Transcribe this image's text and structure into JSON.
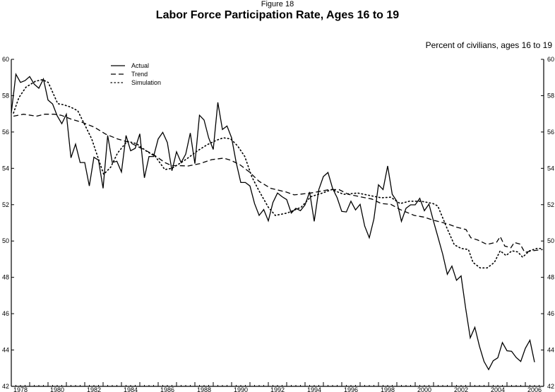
{
  "chart_data": {
    "type": "line",
    "supertitle": "Figure 18",
    "title": "Labor Force Participation Rate, Ages 16 to 19",
    "ylabel": "Percent of civilians, ages 16 to 19",
    "xlim": [
      1978,
      2007
    ],
    "ylim": [
      42,
      60
    ],
    "yticks": [
      42,
      44,
      46,
      48,
      50,
      52,
      54,
      56,
      58,
      60
    ],
    "xtick_labels": [
      "1978",
      "1980",
      "1982",
      "1984",
      "1986",
      "1988",
      "1990",
      "1992",
      "1994",
      "1996",
      "1998",
      "2000",
      "2002",
      "2004",
      "2006"
    ],
    "grid": false,
    "legend_position": "top-left",
    "series": [
      {
        "name": "Actual",
        "style": "solid",
        "frequency": "quarterly",
        "start": "1978Q1",
        "values": [
          57.05,
          59.18,
          58.73,
          58.83,
          59.05,
          58.63,
          58.41,
          58.92,
          57.76,
          57.54,
          56.89,
          56.46,
          56.98,
          54.58,
          55.33,
          54.32,
          54.32,
          53.03,
          54.61,
          54.45,
          52.9,
          55.81,
          54.32,
          54.39,
          53.8,
          55.81,
          54.97,
          55.1,
          55.9,
          53.48,
          54.65,
          54.65,
          55.62,
          55.98,
          55.42,
          53.87,
          54.91,
          54.32,
          54.78,
          55.94,
          54.26,
          56.92,
          56.66,
          55.68,
          55.04,
          57.63,
          56.14,
          56.33,
          55.68,
          54.32,
          53.22,
          53.22,
          53.03,
          52.06,
          51.41,
          51.73,
          51.11,
          52.12,
          52.64,
          52.44,
          52.28,
          51.54,
          51.8,
          51.67,
          51.99,
          52.7,
          51.08,
          52.83,
          53.55,
          53.77,
          52.9,
          52.38,
          51.63,
          51.6,
          52.19,
          51.71,
          52.02,
          50.82,
          50.18,
          51.21,
          53.09,
          52.83,
          54.13,
          52.57,
          52.19,
          51.08,
          51.8,
          51.99,
          51.99,
          52.35,
          51.67,
          52.03,
          51.08,
          50.18,
          49.27,
          48.17,
          48.62,
          47.84,
          48.08,
          46.29,
          44.67,
          45.25,
          44.21,
          43.37,
          42.92,
          43.41,
          43.57,
          44.41,
          43.96,
          43.93,
          43.59,
          43.37,
          44.09,
          44.54,
          43.33
        ]
      },
      {
        "name": "Trend",
        "style": "dashed",
        "x": [
          1978.12,
          1978.67,
          1979.37,
          1979.82,
          1980.33,
          1980.72,
          1981.23,
          1981.87,
          1982.51,
          1983.15,
          1983.79,
          1984.44,
          1985.08,
          1985.72,
          1986.36,
          1986.74,
          1987.13,
          1987.64,
          1988.28,
          1988.92,
          1989.56,
          1989.95,
          1990.46,
          1990.97,
          1991.49,
          1992.13,
          1992.96,
          1993.41,
          1994.31,
          1995.33,
          1995.85,
          1996.36,
          1997.13,
          1997.64,
          1998.15,
          1998.67,
          1999.18,
          1999.95,
          2000.46,
          2000.97,
          2001.74,
          2002.26,
          2002.77,
          2003.03,
          2003.41,
          2003.92,
          2004.44,
          2004.63,
          2004.88,
          2005.21,
          2005.4,
          2005.72,
          2005.97,
          2006.36,
          2006.94
        ],
        "values": [
          56.87,
          56.98,
          56.87,
          56.98,
          56.98,
          56.92,
          56.72,
          56.53,
          56.27,
          55.88,
          55.62,
          55.43,
          55.1,
          54.78,
          54.32,
          54.15,
          54.15,
          54.13,
          54.26,
          54.48,
          54.56,
          54.45,
          54.19,
          53.8,
          53.29,
          52.9,
          52.7,
          52.54,
          52.64,
          52.83,
          52.83,
          52.57,
          52.41,
          52.31,
          52.06,
          52.02,
          51.73,
          51.41,
          51.32,
          51.15,
          50.95,
          50.76,
          50.63,
          50.18,
          50.05,
          49.81,
          49.94,
          50.24,
          49.72,
          49.63,
          49.92,
          49.83,
          49.37,
          49.46,
          49.53
        ]
      },
      {
        "name": "Simulation",
        "style": "dotted",
        "x": [
          1978.12,
          1978.41,
          1978.8,
          1979.31,
          1979.69,
          1980.01,
          1980.27,
          1980.53,
          1980.85,
          1981.23,
          1981.62,
          1982.0,
          1982.38,
          1982.64,
          1983.03,
          1983.41,
          1983.79,
          1984.31,
          1984.82,
          1985.33,
          1985.85,
          1986.36,
          1986.74,
          1987.26,
          1987.64,
          1988.15,
          1988.67,
          1989.18,
          1989.56,
          1989.95,
          1990.33,
          1990.72,
          1991.1,
          1991.49,
          1992.0,
          1992.38,
          1993.03,
          1993.79,
          1994.31,
          1994.95,
          1995.46,
          1996.1,
          1996.87,
          1997.64,
          1998.15,
          1998.67,
          1999.18,
          1999.69,
          2000.33,
          2000.97,
          2001.23,
          2001.74,
          2002.13,
          2002.51,
          2002.9,
          2003.15,
          2003.54,
          2003.92,
          2004.31,
          2004.63,
          2004.95,
          2005.27,
          2005.59,
          2005.85,
          2006.23,
          2006.62,
          2006.94
        ],
        "values": [
          57.04,
          57.89,
          58.47,
          58.79,
          58.88,
          58.73,
          58.15,
          57.56,
          57.5,
          57.37,
          57.17,
          56.4,
          55.62,
          54.84,
          53.67,
          54.06,
          54.84,
          55.49,
          55.36,
          54.97,
          54.65,
          53.93,
          54.0,
          54.32,
          54.58,
          54.97,
          55.3,
          55.55,
          55.68,
          55.62,
          55.23,
          54.65,
          53.54,
          52.77,
          51.86,
          51.41,
          51.54,
          51.86,
          52.44,
          52.64,
          52.83,
          52.57,
          52.64,
          52.48,
          52.38,
          52.41,
          52.06,
          52.19,
          52.19,
          52.06,
          51.93,
          50.69,
          49.79,
          49.59,
          49.53,
          48.82,
          48.52,
          48.52,
          48.82,
          49.46,
          49.2,
          49.46,
          49.4,
          49.11,
          49.46,
          49.59,
          49.59
        ]
      }
    ]
  }
}
